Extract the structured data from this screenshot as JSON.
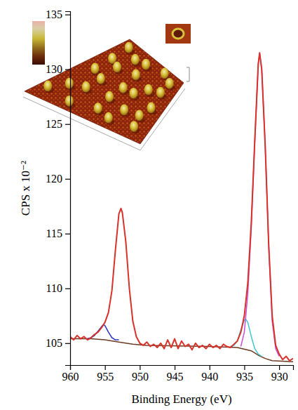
{
  "chart_data": {
    "type": "line",
    "xlabel": "Binding Energy (eV)",
    "ylabel": "CPS x 10⁻²",
    "xlim": [
      960,
      928
    ],
    "ylim": [
      103,
      135.3
    ],
    "xticks": [
      960,
      955,
      950,
      945,
      940,
      935,
      930
    ],
    "yticks": [
      105,
      110,
      115,
      120,
      125,
      130,
      135
    ],
    "grid": false,
    "series": [
      {
        "color": "#d8322a",
        "x": [
          960,
          959.5,
          959,
          958.5,
          958,
          957.5,
          957,
          956.5,
          956,
          955.5,
          955,
          954.5,
          954,
          953.5,
          953,
          952.7,
          952.5,
          952,
          951.5,
          951,
          950.5,
          950,
          949.5,
          949,
          948.5,
          948,
          947.5,
          947,
          946.5,
          946,
          945.5,
          945,
          944.5,
          944,
          943.5,
          943,
          942.5,
          942,
          941.5,
          941,
          940.5,
          940,
          939.5,
          939,
          938.5,
          938,
          937.5,
          937,
          936.5,
          936,
          935.5,
          935,
          934.5,
          934,
          933.5,
          933,
          932.8,
          932.5,
          932,
          931.5,
          931,
          930.5,
          930,
          929.5,
          929,
          928.5,
          928
        ],
        "values": [
          105.6,
          105.3,
          105.7,
          105.4,
          105.6,
          105.3,
          105.5,
          105.8,
          106.0,
          106.4,
          106.9,
          107.8,
          109.8,
          113.5,
          116.8,
          117.3,
          116.9,
          114.2,
          110.0,
          107.0,
          105.6,
          105.0,
          104.8,
          105.1,
          104.7,
          104.9,
          104.6,
          105.0,
          104.5,
          105.3,
          104.6,
          105.4,
          104.5,
          105.2,
          104.7,
          104.9,
          104.4,
          105.0,
          104.6,
          104.8,
          104.5,
          104.9,
          104.6,
          104.8,
          104.5,
          104.9,
          104.7,
          104.6,
          104.9,
          105.2,
          106.0,
          107.5,
          110.5,
          116.0,
          123.5,
          130.5,
          131.5,
          130.0,
          123.0,
          114.0,
          107.5,
          104.8,
          104.0,
          103.5,
          103.8,
          103.4,
          103.6
        ]
      },
      {
        "color": "#2a34c0",
        "x": [
          957.5,
          957,
          956.5,
          956,
          955.5,
          955.2,
          955,
          954.5,
          954,
          953.5,
          953
        ],
        "values": [
          105.4,
          105.5,
          105.7,
          106.1,
          106.5,
          106.7,
          106.6,
          106.0,
          105.5,
          105.3,
          105.3
        ]
      },
      {
        "color": "#c64fd8",
        "x": [
          935.5,
          935,
          934.5,
          934,
          933.5,
          933,
          932.8,
          932.5,
          932,
          931.5,
          931,
          930.5,
          930
        ],
        "values": [
          104.7,
          106.0,
          109.5,
          115.5,
          123.3,
          130.4,
          131.5,
          130.0,
          123.0,
          113.8,
          107.0,
          104.5,
          103.8
        ]
      },
      {
        "color": "#3ec6d2",
        "x": [
          937,
          936.5,
          936,
          935.5,
          935,
          934.8,
          934.5,
          934,
          933.5,
          933,
          932.5
        ],
        "values": [
          104.7,
          104.8,
          105.2,
          106.2,
          107.1,
          107.2,
          106.9,
          105.6,
          104.5,
          104.0,
          103.8
        ]
      },
      {
        "color": "#6b3a22",
        "x": [
          960,
          957,
          955,
          953,
          951,
          949,
          940,
          936,
          934,
          933,
          932,
          931,
          928
        ],
        "values": [
          105.4,
          105.4,
          105.3,
          105.1,
          104.9,
          104.8,
          104.7,
          104.6,
          104.3,
          103.9,
          103.6,
          103.4,
          103.3
        ]
      }
    ]
  }
}
